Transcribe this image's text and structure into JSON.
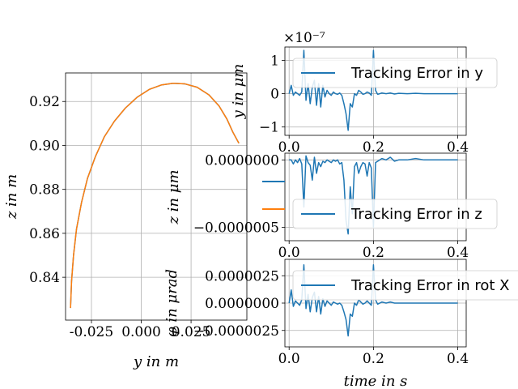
{
  "chart_data": [
    {
      "type": "line",
      "xlabel": "y in m",
      "ylabel": "z in m",
      "xlim": [
        -0.038,
        0.053
      ],
      "ylim": [
        0.8205,
        0.933
      ],
      "xticks": [
        "-0.025",
        "0.000",
        "0.025"
      ],
      "yticks": [
        "0.84",
        "0.86",
        "0.88",
        "0.90",
        "0.92"
      ],
      "grid": true,
      "series": [
        {
          "color": "#1f77b4",
          "x": [
            -0.0355,
            -0.035,
            -0.034,
            -0.0325,
            -0.03,
            -0.027,
            -0.023,
            -0.0185,
            -0.0135,
            -0.008,
            -0.002,
            0.004,
            0.01,
            0.016,
            0.022,
            0.028,
            0.034,
            0.039,
            0.043,
            0.046,
            0.049
          ],
          "y": [
            0.826,
            0.838,
            0.85,
            0.862,
            0.874,
            0.885,
            0.895,
            0.904,
            0.911,
            0.917,
            0.922,
            0.9255,
            0.9275,
            0.9283,
            0.928,
            0.9265,
            0.923,
            0.918,
            0.912,
            0.906,
            0.901
          ]
        },
        {
          "color": "#ff7f0e",
          "x": [
            -0.0355,
            -0.035,
            -0.034,
            -0.0325,
            -0.03,
            -0.027,
            -0.023,
            -0.0185,
            -0.0135,
            -0.008,
            -0.002,
            0.004,
            0.01,
            0.016,
            0.022,
            0.028,
            0.034,
            0.039,
            0.043,
            0.046,
            0.049
          ],
          "y": [
            0.826,
            0.838,
            0.85,
            0.862,
            0.874,
            0.885,
            0.895,
            0.904,
            0.911,
            0.917,
            0.922,
            0.9255,
            0.9275,
            0.9283,
            0.928,
            0.9265,
            0.923,
            0.918,
            0.912,
            0.906,
            0.901
          ]
        }
      ]
    },
    {
      "type": "line",
      "ylabel": "y in μm",
      "offset_text": "×10⁻⁷",
      "xlim": [
        -0.01,
        0.42
      ],
      "ylim": [
        -1.25,
        1.4
      ],
      "xticks": [
        "0.0",
        "0.2",
        "0.4"
      ],
      "yticks": [
        "−1",
        "0",
        "1"
      ],
      "grid": true,
      "legend": "top-right",
      "series": [
        {
          "name": "Tracking Error in y",
          "color": "#1f77b4",
          "x": [
            0.0,
            0.005,
            0.01,
            0.015,
            0.02,
            0.025,
            0.03,
            0.035,
            0.04,
            0.045,
            0.05,
            0.055,
            0.06,
            0.065,
            0.07,
            0.075,
            0.08,
            0.085,
            0.09,
            0.095,
            0.1,
            0.105,
            0.11,
            0.115,
            0.12,
            0.125,
            0.13,
            0.135,
            0.14,
            0.145,
            0.15,
            0.155,
            0.16,
            0.165,
            0.17,
            0.175,
            0.18,
            0.185,
            0.19,
            0.195,
            0.2,
            0.205,
            0.21,
            0.22,
            0.23,
            0.24,
            0.25,
            0.26,
            0.28,
            0.3,
            0.32,
            0.34,
            0.36,
            0.38,
            0.4
          ],
          "y": [
            0.0,
            0.25,
            -0.05,
            0.05,
            0.0,
            -0.05,
            0.05,
            1.3,
            -0.2,
            0.3,
            -0.3,
            0.2,
            0.4,
            -0.35,
            0.3,
            -0.4,
            0.25,
            -0.1,
            0.1,
            0.0,
            -0.05,
            0.05,
            0.0,
            -0.02,
            0.02,
            -0.05,
            -0.3,
            -0.6,
            -1.1,
            -0.3,
            -0.4,
            0.0,
            -0.05,
            0.1,
            0.05,
            -0.02,
            0.0,
            0.05,
            0.02,
            -0.05,
            1.3,
            0.1,
            -0.02,
            0.02,
            0.0,
            0.02,
            -0.01,
            0.01,
            0.0,
            0.01,
            0.0,
            0.0,
            0.0,
            0.0,
            0.0
          ]
        }
      ]
    },
    {
      "type": "line",
      "ylabel": "z in μm",
      "xlim": [
        -0.01,
        0.42
      ],
      "ylim": [
        -6e-07,
        5e-08
      ],
      "xticks": [
        "0.0",
        "0.2",
        "0.4"
      ],
      "yticks": [
        "0.0000000",
        "−0.0000005"
      ],
      "grid": true,
      "legend": "center-right",
      "series": [
        {
          "name": "Tracking Error in z",
          "color": "#1f77b4",
          "x": [
            0.0,
            0.005,
            0.01,
            0.015,
            0.02,
            0.025,
            0.03,
            0.035,
            0.04,
            0.045,
            0.05,
            0.055,
            0.06,
            0.065,
            0.07,
            0.075,
            0.08,
            0.085,
            0.09,
            0.095,
            0.1,
            0.105,
            0.11,
            0.115,
            0.12,
            0.125,
            0.13,
            0.135,
            0.14,
            0.145,
            0.15,
            0.155,
            0.16,
            0.165,
            0.17,
            0.175,
            0.18,
            0.185,
            0.19,
            0.195,
            0.2,
            0.205,
            0.21,
            0.22,
            0.23,
            0.24,
            0.25,
            0.26,
            0.28,
            0.3,
            0.32,
            0.34,
            0.36,
            0.38,
            0.4
          ],
          "y": [
            0.0,
            -0.0,
            -3e-08,
            0.0,
            -2e-08,
            1e-08,
            -3e-08,
            -3.5e-07,
            3e-08,
            -2e-08,
            -4e-08,
            -1.5e-07,
            2e-08,
            -1e-07,
            -2e-08,
            -5e-08,
            -1e-08,
            -2e-08,
            0.0,
            -1e-08,
            -2e-08,
            0.0,
            -1e-08,
            0.0,
            -3e-08,
            -2e-08,
            -1.5e-07,
            -4.5e-07,
            -5.5e-07,
            -2e-07,
            -4e-07,
            -5e-08,
            -2e-08,
            -1e-07,
            -5e-08,
            -2e-08,
            -3e-08,
            -1.2e-07,
            -2e-08,
            -6e-08,
            -5e-07,
            -2e-08,
            -1e-08,
            1e-08,
            0.0,
            2e-08,
            -1e-08,
            0.0,
            0.0,
            1e-08,
            0.0,
            0.0,
            0.0,
            0.0,
            0.0
          ]
        }
      ]
    },
    {
      "type": "line",
      "xlabel": "time in s",
      "ylabel": "φ in μrad",
      "xlim": [
        -0.01,
        0.42
      ],
      "ylim": [
        -4e-07,
        4e-07
      ],
      "xticks": [
        "0.0",
        "0.2",
        "0.4"
      ],
      "yticks": [
        "0.0000025",
        "0.0000000",
        "−0.0000025"
      ],
      "grid": true,
      "legend": "top-right",
      "series": [
        {
          "name": "Tracking Error in rot X",
          "color": "#1f77b4",
          "x": [
            0.0,
            0.005,
            0.01,
            0.015,
            0.02,
            0.025,
            0.03,
            0.035,
            0.04,
            0.045,
            0.05,
            0.055,
            0.06,
            0.065,
            0.07,
            0.075,
            0.08,
            0.085,
            0.09,
            0.095,
            0.1,
            0.105,
            0.11,
            0.115,
            0.12,
            0.125,
            0.13,
            0.135,
            0.14,
            0.145,
            0.15,
            0.155,
            0.16,
            0.165,
            0.17,
            0.175,
            0.18,
            0.185,
            0.19,
            0.195,
            0.2,
            0.205,
            0.21,
            0.22,
            0.23,
            0.24,
            0.25,
            0.26,
            0.28,
            0.3,
            0.32,
            0.34,
            0.36,
            0.38,
            0.4
          ],
          "y": [
            0.0,
            1.2e-07,
            -3e-08,
            2e-08,
            0.0,
            -2e-08,
            3e-08,
            3.5e-07,
            -5e-08,
            8e-08,
            -8e-08,
            5e-08,
            1e-07,
            -8e-08,
            6e-08,
            -1e-07,
            4e-08,
            -3e-08,
            2e-08,
            0.0,
            -2e-08,
            1e-08,
            0.0,
            -1e-08,
            0.0,
            -2e-08,
            -8e-08,
            -1.5e-07,
            -3e-07,
            -1e-07,
            -1.2e-07,
            0.0,
            -2e-08,
            3e-08,
            1e-08,
            -1e-08,
            0.0,
            2e-08,
            0.0,
            -2e-08,
            3.5e-07,
            3e-08,
            -1e-08,
            1e-08,
            0.0,
            1e-08,
            0.0,
            0.0,
            0.0,
            0.0,
            0.0,
            0.0,
            0.0,
            0.0,
            0.0
          ]
        }
      ]
    }
  ]
}
